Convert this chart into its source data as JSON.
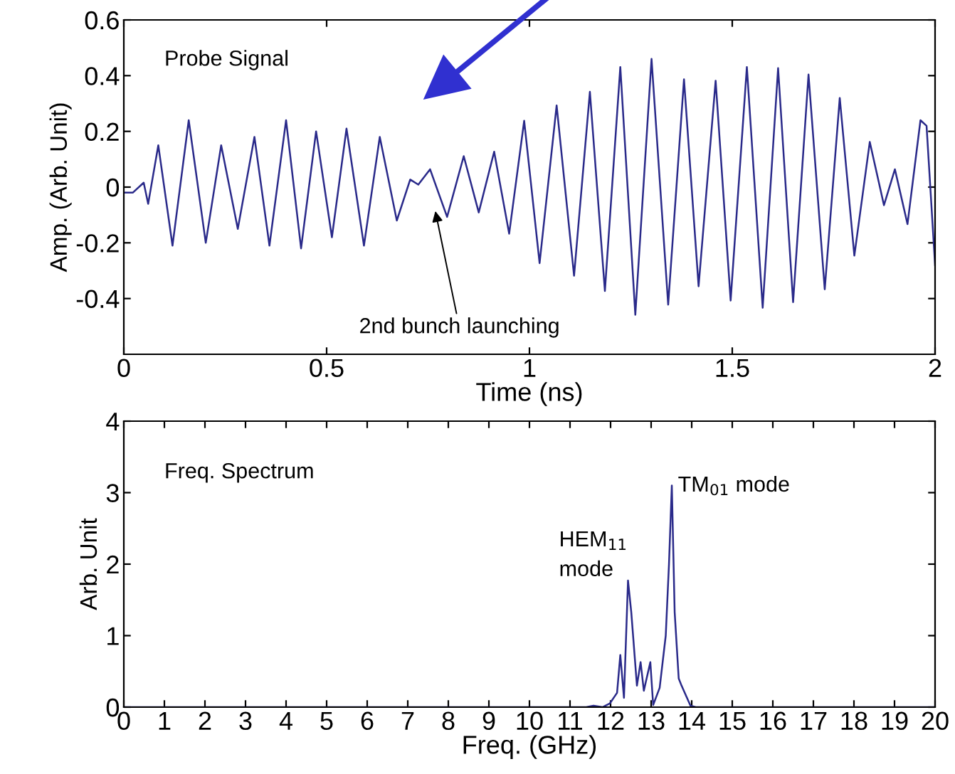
{
  "chart_data": [
    {
      "type": "line",
      "xlabel": "Time (ns)",
      "ylabel": "Amp. (Arb. Unit)",
      "xlim": [
        0,
        2
      ],
      "ylim": [
        -0.6,
        0.6
      ],
      "xticks": [
        0,
        0.5,
        1,
        1.5,
        2
      ],
      "yticks": [
        -0.4,
        -0.2,
        0,
        0.2,
        0.4,
        0.6
      ],
      "grid": false,
      "legend": false,
      "series": [
        {
          "color": "#2a2a8a",
          "x": [
            0,
            0.022,
            0.049,
            0.06,
            0.085,
            0.12,
            0.16,
            0.202,
            0.24,
            0.281,
            0.322,
            0.359,
            0.4,
            0.437,
            0.474,
            0.513,
            0.549,
            0.592,
            0.631,
            0.673,
            0.706,
            0.726,
            0.755,
            0.797,
            0.838,
            0.875,
            0.913,
            0.95,
            0.987,
            1.025,
            1.067,
            1.11,
            1.149,
            1.186,
            1.224,
            1.261,
            1.301,
            1.342,
            1.381,
            1.417,
            1.459,
            1.496,
            1.536,
            1.575,
            1.613,
            1.65,
            1.688,
            1.728,
            1.765,
            1.801,
            1.839,
            1.874,
            1.901,
            1.932,
            1.964,
            1.979,
            2.0
          ],
          "values": [
            -0.02,
            -0.02,
            0.016,
            -0.06,
            0.15,
            -0.21,
            0.24,
            -0.2,
            0.15,
            -0.15,
            0.18,
            -0.21,
            0.24,
            -0.22,
            0.2,
            -0.18,
            0.21,
            -0.21,
            0.18,
            -0.12,
            0.027,
            0.009,
            0.064,
            -0.107,
            0.111,
            -0.091,
            0.127,
            -0.167,
            0.238,
            -0.273,
            0.293,
            -0.318,
            0.342,
            -0.373,
            0.431,
            -0.458,
            0.46,
            -0.422,
            0.387,
            -0.356,
            0.382,
            -0.407,
            0.431,
            -0.433,
            0.427,
            -0.413,
            0.404,
            -0.367,
            0.32,
            -0.246,
            0.162,
            -0.065,
            0.064,
            -0.133,
            0.24,
            0.22,
            -0.28
          ]
        }
      ],
      "annotations": [
        "Probe Signal",
        "2nd bunch launching"
      ]
    },
    {
      "type": "line",
      "xlabel": "Freq. (GHz)",
      "ylabel": "Arb. Unit",
      "xlim": [
        0,
        20
      ],
      "ylim": [
        0,
        4
      ],
      "xticks": [
        0,
        1,
        2,
        3,
        4,
        5,
        6,
        7,
        8,
        9,
        10,
        11,
        12,
        13,
        14,
        15,
        16,
        17,
        18,
        19,
        20
      ],
      "yticks": [
        0,
        1,
        2,
        3,
        4
      ],
      "grid": false,
      "legend": false,
      "series": [
        {
          "color": "#2a2a8a",
          "x": [
            0,
            11.4,
            11.58,
            11.8,
            11.98,
            12.16,
            12.24,
            12.33,
            12.43,
            12.51,
            12.65,
            12.74,
            12.82,
            12.98,
            13.05,
            13.21,
            13.36,
            13.44,
            13.51,
            13.58,
            13.68,
            13.75,
            13.97,
            14.1,
            20
          ],
          "values": [
            0,
            0,
            0.02,
            0,
            0.05,
            0.2,
            0.73,
            0.13,
            1.77,
            1.33,
            0.3,
            0.63,
            0.23,
            0.63,
            0.03,
            0.27,
            1.0,
            2.0,
            3.1,
            1.33,
            0.4,
            0.3,
            0.02,
            0,
            0
          ]
        }
      ],
      "annotations": [
        "Freq. Spectrum",
        {
          "text": "HEM$_{11}$\nmode",
          "x": 12.43,
          "y": 1.77
        },
        {
          "text": "TM$_{01}$ mode",
          "x": 13.51,
          "y": 3.1
        }
      ]
    }
  ]
}
